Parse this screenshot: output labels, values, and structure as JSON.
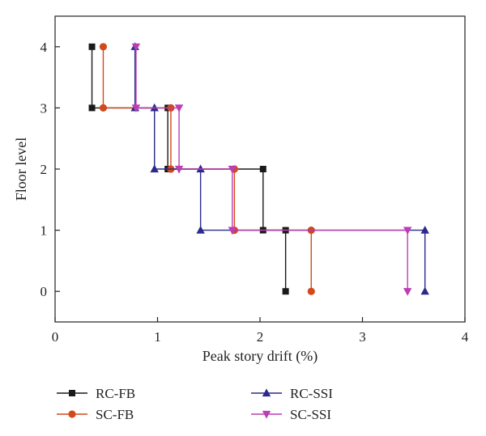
{
  "chart_data": {
    "type": "line",
    "xlabel": "Peak story drift (%)",
    "ylabel": "Floor level",
    "xlim": [
      0,
      4
    ],
    "ylim": [
      -0.5,
      4.5
    ],
    "xticks": [
      "0",
      "1",
      "2",
      "3",
      "4"
    ],
    "yticks": [
      "0",
      "1",
      "2",
      "3",
      "4"
    ],
    "grid": false,
    "legend_position": "bottom",
    "series": [
      {
        "name": "RC-FB",
        "color": "#1a1a1a",
        "marker": "square",
        "points": [
          [
            0.36,
            4
          ],
          [
            0.36,
            3
          ],
          [
            1.1,
            3
          ],
          [
            1.1,
            2
          ],
          [
            2.03,
            2
          ],
          [
            2.03,
            1
          ],
          [
            2.25,
            1
          ],
          [
            2.25,
            0
          ]
        ]
      },
      {
        "name": "SC-FB",
        "color": "#d2491c",
        "marker": "circle",
        "points": [
          [
            0.47,
            4
          ],
          [
            0.47,
            3
          ],
          [
            1.13,
            3
          ],
          [
            1.13,
            2
          ],
          [
            1.75,
            2
          ],
          [
            1.75,
            1
          ],
          [
            2.5,
            1
          ],
          [
            2.5,
            0
          ]
        ]
      },
      {
        "name": "RC-SSI",
        "color": "#2b2a8c",
        "marker": "triangle-up",
        "points": [
          [
            0.78,
            4
          ],
          [
            0.78,
            3
          ],
          [
            0.97,
            3
          ],
          [
            0.97,
            2
          ],
          [
            1.42,
            2
          ],
          [
            1.42,
            1
          ],
          [
            3.61,
            1
          ],
          [
            3.61,
            0
          ]
        ]
      },
      {
        "name": "SC-SSI",
        "color": "#bb3fb3",
        "marker": "triangle-down",
        "points": [
          [
            0.79,
            4
          ],
          [
            0.79,
            3
          ],
          [
            1.21,
            3
          ],
          [
            1.21,
            2
          ],
          [
            1.73,
            2
          ],
          [
            1.73,
            1
          ],
          [
            3.44,
            1
          ],
          [
            3.44,
            0
          ]
        ]
      }
    ]
  }
}
